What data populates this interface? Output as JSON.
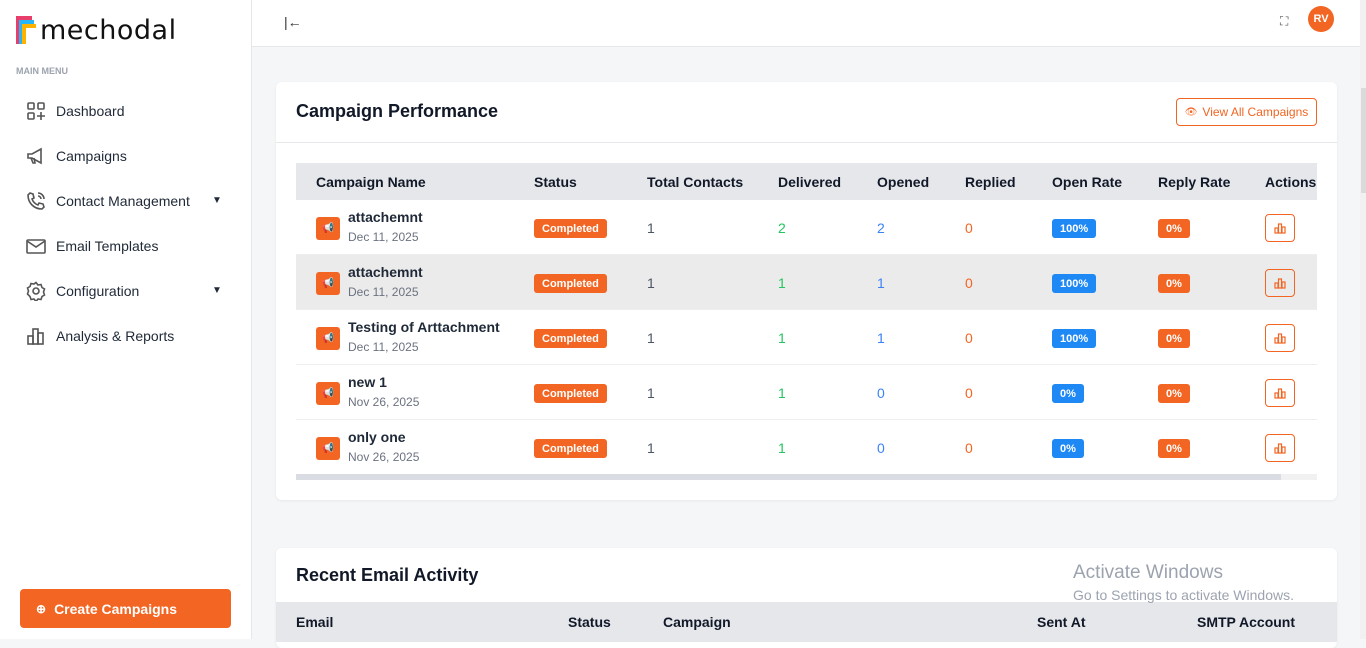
{
  "brand": {
    "name": "mechodal"
  },
  "sidebar": {
    "section_label": "MAIN MENU",
    "items": [
      {
        "label": "Dashboard",
        "icon": "dashboard-icon"
      },
      {
        "label": "Campaigns",
        "icon": "megaphone-icon"
      },
      {
        "label": "Contact Management",
        "icon": "phone-icon",
        "expandable": true
      },
      {
        "label": "Email Templates",
        "icon": "mail-icon"
      },
      {
        "label": "Configuration",
        "icon": "gear-icon",
        "expandable": true
      },
      {
        "label": "Analysis & Reports",
        "icon": "bar-chart-icon"
      }
    ],
    "create_button": "Create Campaigns"
  },
  "header": {
    "avatar_initials": "RV"
  },
  "campaign_performance": {
    "title": "Campaign Performance",
    "view_all": "View All Campaigns",
    "columns": [
      "Campaign Name",
      "Status",
      "Total Contacts",
      "Delivered",
      "Opened",
      "Replied",
      "Open Rate",
      "Reply Rate",
      "Actions"
    ],
    "rows": [
      {
        "name": "attachemnt",
        "date": "Dec 11, 2025",
        "status": "Completed",
        "total": "1",
        "delivered": "2",
        "opened": "2",
        "replied": "0",
        "open_rate": "100%",
        "reply_rate": "0%"
      },
      {
        "name": "attachemnt",
        "date": "Dec 11, 2025",
        "status": "Completed",
        "total": "1",
        "delivered": "1",
        "opened": "1",
        "replied": "0",
        "open_rate": "100%",
        "reply_rate": "0%"
      },
      {
        "name": "Testing of Arttachment",
        "date": "Dec 11, 2025",
        "status": "Completed",
        "total": "1",
        "delivered": "1",
        "opened": "1",
        "replied": "0",
        "open_rate": "100%",
        "reply_rate": "0%"
      },
      {
        "name": "new 1",
        "date": "Nov 26, 2025",
        "status": "Completed",
        "total": "1",
        "delivered": "1",
        "opened": "0",
        "replied": "0",
        "open_rate": "0%",
        "reply_rate": "0%"
      },
      {
        "name": "only one",
        "date": "Nov 26, 2025",
        "status": "Completed",
        "total": "1",
        "delivered": "1",
        "opened": "0",
        "replied": "0",
        "open_rate": "0%",
        "reply_rate": "0%"
      }
    ]
  },
  "recent_activity": {
    "title": "Recent Email Activity",
    "columns": [
      "Email",
      "Status",
      "Campaign",
      "Sent At",
      "SMTP Account"
    ]
  },
  "watermark": {
    "title": "Activate Windows",
    "subtitle": "Go to Settings to activate Windows."
  },
  "colors": {
    "accent": "#f26522",
    "delivered": "#22c55e",
    "opened": "#3b82f6",
    "replied": "#f26522",
    "open_rate_badge": "#1e88f5"
  }
}
